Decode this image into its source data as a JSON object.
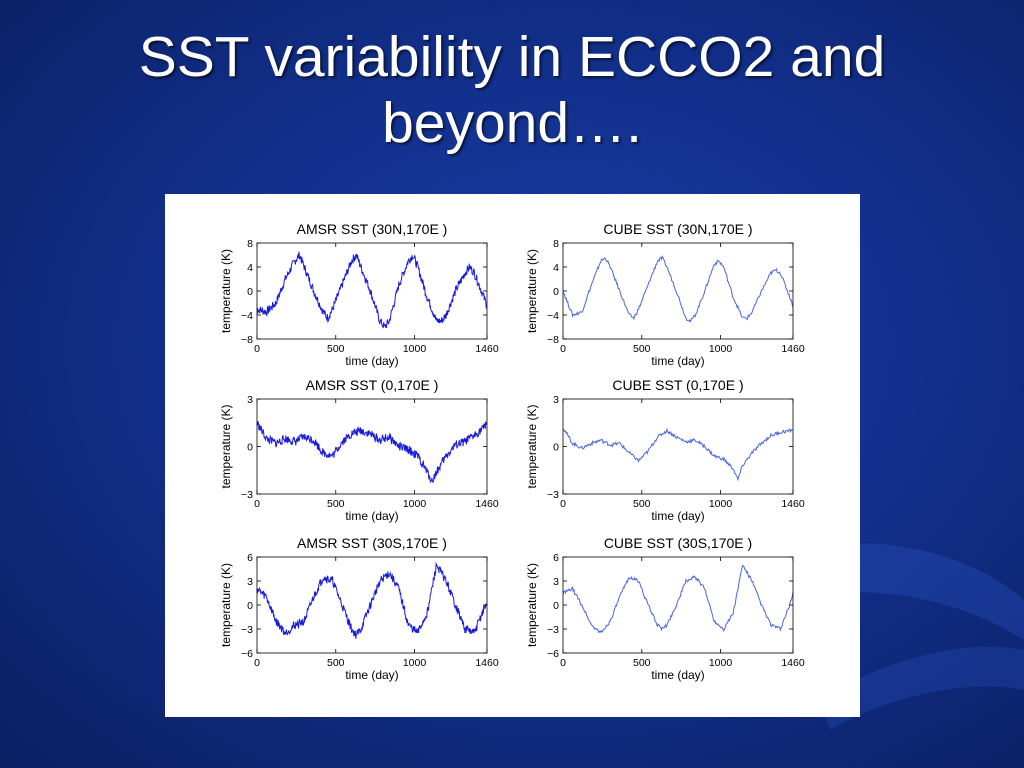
{
  "slide": {
    "title_line1": "SST variability in ECCO2 and",
    "title_line2": "beyond…."
  },
  "colors": {
    "background": "#12308c",
    "title": "#ffffff",
    "amsr_line": "#1a1adb",
    "cube_line": "#4a66e0"
  },
  "chart_data": [
    {
      "type": "line",
      "title": "AMSR SST (30N,170E )",
      "xlabel": "time (day)",
      "ylabel": "temperature (K)",
      "xlim": [
        0,
        1460
      ],
      "ylim": [
        -8,
        8
      ],
      "xticks": [
        0,
        500,
        1000,
        1460
      ],
      "yticks": [
        -8,
        -4,
        0,
        4,
        8
      ],
      "grid": false,
      "series": [
        {
          "x": [
            0,
            60,
            120,
            180,
            240,
            270,
            300,
            360,
            420,
            450,
            480,
            540,
            600,
            630,
            660,
            720,
            780,
            810,
            840,
            900,
            960,
            990,
            1020,
            1080,
            1140,
            1170,
            1200,
            1260,
            1320,
            1350,
            1380,
            1440,
            1460
          ],
          "y": [
            -3,
            -3.5,
            -2,
            2,
            5,
            6,
            4,
            0,
            -3.5,
            -4.5,
            -3,
            1,
            5,
            6,
            4,
            0,
            -5,
            -6,
            -5,
            1,
            5,
            6,
            4,
            -1,
            -5,
            -5,
            -4,
            0,
            3,
            4,
            3,
            -1,
            -2.5
          ]
        }
      ]
    },
    {
      "type": "line",
      "title": "CUBE SST (30N,170E )",
      "xlabel": "time (day)",
      "ylabel": "temperature (K)",
      "xlim": [
        0,
        1460
      ],
      "ylim": [
        -8,
        8
      ],
      "xticks": [
        0,
        500,
        1000,
        1460
      ],
      "yticks": [
        -8,
        -4,
        0,
        4,
        8
      ],
      "grid": false,
      "series": [
        {
          "x": [
            0,
            60,
            120,
            180,
            240,
            270,
            300,
            360,
            420,
            450,
            480,
            540,
            600,
            630,
            660,
            720,
            780,
            810,
            840,
            900,
            960,
            990,
            1020,
            1080,
            1140,
            1170,
            1200,
            1260,
            1320,
            1350,
            1380,
            1440,
            1460
          ],
          "y": [
            0,
            -4,
            -3.5,
            1,
            5,
            5.5,
            4,
            0,
            -4,
            -4.5,
            -3,
            1,
            5,
            5.5,
            4,
            0,
            -4.5,
            -5,
            -4,
            0,
            4.5,
            5,
            4,
            -1,
            -4.5,
            -4.5,
            -3.5,
            0,
            3,
            3.5,
            3,
            -1,
            -2.5
          ]
        }
      ]
    },
    {
      "type": "line",
      "title": "AMSR SST (0,170E )",
      "xlabel": "time (day)",
      "ylabel": "temperature (K)",
      "xlim": [
        0,
        1460
      ],
      "ylim": [
        -3,
        3
      ],
      "xticks": [
        0,
        500,
        1000,
        1460
      ],
      "yticks": [
        -3,
        0,
        3
      ],
      "grid": false,
      "series": [
        {
          "x": [
            0,
            60,
            120,
            180,
            240,
            300,
            360,
            420,
            480,
            540,
            600,
            660,
            720,
            780,
            840,
            900,
            960,
            1020,
            1080,
            1110,
            1140,
            1200,
            1260,
            1320,
            1380,
            1440,
            1460
          ],
          "y": [
            1.5,
            0.5,
            0.2,
            0.5,
            0.3,
            0.6,
            0.4,
            -0.4,
            -0.6,
            0.3,
            0.8,
            1.0,
            0.8,
            0.4,
            0.6,
            0.0,
            -0.2,
            -0.6,
            -1.6,
            -2.2,
            -1.6,
            -0.6,
            0.1,
            0.3,
            0.7,
            1.2,
            1.6
          ]
        }
      ]
    },
    {
      "type": "line",
      "title": "CUBE SST (0,170E )",
      "xlabel": "time (day)",
      "ylabel": "temperature (K)",
      "xlim": [
        0,
        1460
      ],
      "ylim": [
        -3,
        3
      ],
      "xticks": [
        0,
        500,
        1000,
        1460
      ],
      "yticks": [
        -3,
        0,
        3
      ],
      "grid": false,
      "series": [
        {
          "x": [
            0,
            60,
            120,
            180,
            240,
            300,
            360,
            420,
            480,
            540,
            600,
            660,
            720,
            780,
            840,
            900,
            960,
            1020,
            1080,
            1110,
            1140,
            1200,
            1260,
            1320,
            1380,
            1440,
            1460
          ],
          "y": [
            1.2,
            0.2,
            -0.1,
            0.2,
            0.4,
            0.1,
            0.2,
            -0.4,
            -0.9,
            -0.3,
            0.6,
            1.0,
            0.6,
            0.3,
            0.4,
            0.0,
            -0.6,
            -0.8,
            -1.4,
            -2.1,
            -1.2,
            -0.4,
            0.2,
            0.7,
            0.9,
            1.0,
            1.1
          ]
        }
      ]
    },
    {
      "type": "line",
      "title": "AMSR SST (30S,170E )",
      "xlabel": "time (day)",
      "ylabel": "temperature (K)",
      "xlim": [
        0,
        1460
      ],
      "ylim": [
        -6,
        6
      ],
      "xticks": [
        0,
        500,
        1000,
        1460
      ],
      "yticks": [
        -6,
        -3,
        0,
        3,
        6
      ],
      "grid": false,
      "series": [
        {
          "x": [
            0,
            60,
            120,
            180,
            240,
            300,
            360,
            420,
            480,
            540,
            600,
            630,
            660,
            720,
            780,
            840,
            900,
            960,
            1020,
            1080,
            1110,
            1140,
            1200,
            1260,
            1320,
            1380,
            1440,
            1460
          ],
          "y": [
            2,
            1,
            -2,
            -3.5,
            -2.5,
            -2,
            1,
            3.5,
            3,
            0,
            -3,
            -3.8,
            -3,
            0,
            3,
            4,
            2,
            -2.5,
            -3.5,
            -1,
            2,
            5,
            3,
            0,
            -3,
            -3.5,
            -0.5,
            0
          ]
        }
      ]
    },
    {
      "type": "line",
      "title": "CUBE SST (30S,170E )",
      "xlabel": "time (day)",
      "ylabel": "temperature (K)",
      "xlim": [
        0,
        1460
      ],
      "ylim": [
        -6,
        6
      ],
      "xticks": [
        0,
        500,
        1000,
        1460
      ],
      "yticks": [
        -6,
        -3,
        0,
        3,
        6
      ],
      "grid": false,
      "series": [
        {
          "x": [
            0,
            60,
            120,
            180,
            240,
            300,
            360,
            420,
            480,
            540,
            600,
            630,
            660,
            720,
            780,
            840,
            900,
            960,
            1020,
            1080,
            1110,
            1140,
            1200,
            1260,
            1320,
            1380,
            1440,
            1460
          ],
          "y": [
            1.5,
            2,
            0,
            -2.5,
            -3.5,
            -2,
            1,
            3.5,
            3,
            0,
            -2.5,
            -3,
            -2.5,
            0,
            3,
            3.5,
            2,
            -2,
            -3,
            -1,
            2,
            5,
            3,
            0,
            -2.5,
            -3,
            0,
            1.5
          ]
        }
      ]
    }
  ]
}
